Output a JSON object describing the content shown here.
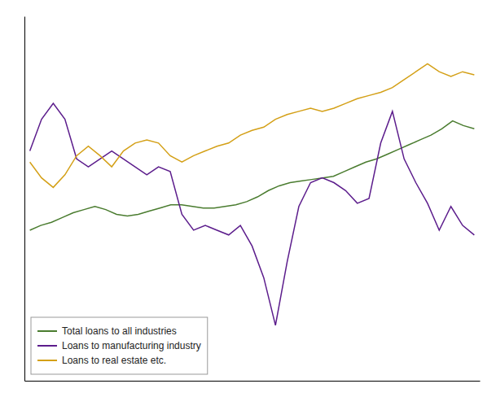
{
  "chart_data": {
    "type": "line",
    "series": [
      {
        "name": "Total loans to all industries",
        "color": "#4a7c2f",
        "values": [
          4.5,
          4.8,
          5.0,
          5.3,
          5.6,
          5.8,
          6.0,
          5.8,
          5.5,
          5.4,
          5.5,
          5.7,
          5.9,
          6.1,
          6.1,
          6.0,
          5.9,
          5.9,
          6.0,
          6.1,
          6.3,
          6.6,
          7.0,
          7.3,
          7.5,
          7.6,
          7.7,
          7.8,
          7.9,
          8.2,
          8.5,
          8.8,
          9.0,
          9.3,
          9.6,
          9.9,
          10.2,
          10.5,
          10.9,
          11.4,
          11.1,
          10.9
        ]
      },
      {
        "name": "Loans to manufacturing industry",
        "color": "#5c1d8c",
        "values": [
          9.5,
          11.5,
          12.5,
          11.5,
          9.0,
          8.5,
          9.0,
          9.5,
          9.0,
          8.5,
          8.0,
          8.5,
          8.2,
          5.5,
          4.5,
          4.8,
          4.5,
          4.2,
          4.8,
          3.5,
          1.5,
          -1.5,
          2.5,
          6.0,
          7.5,
          7.8,
          7.5,
          7.0,
          6.2,
          6.5,
          10.0,
          12.0,
          9.0,
          7.5,
          6.2,
          4.5,
          6.0,
          4.8,
          4.2
        ]
      },
      {
        "name": "Loans to real estate etc.",
        "color": "#d4a017",
        "values": [
          8.8,
          7.8,
          7.2,
          8.0,
          9.2,
          9.8,
          9.2,
          8.5,
          9.5,
          10.0,
          10.2,
          10.0,
          9.2,
          8.8,
          9.2,
          9.5,
          9.8,
          10.0,
          10.5,
          10.8,
          11.0,
          11.5,
          11.8,
          12.0,
          12.2,
          12.0,
          12.2,
          12.5,
          12.8,
          13.0,
          13.2,
          13.5,
          14.0,
          14.5,
          15.0,
          14.5,
          14.2,
          14.5,
          14.3
        ]
      }
    ],
    "ylim": [
      -5,
      18
    ],
    "grid": false,
    "tick_labels": false,
    "legend": "lower left"
  }
}
